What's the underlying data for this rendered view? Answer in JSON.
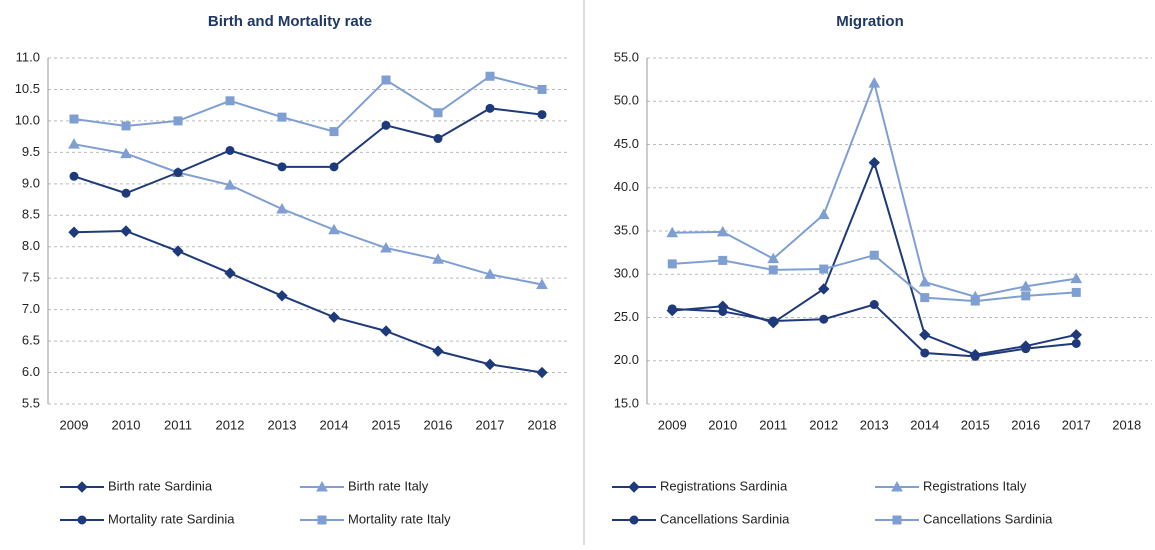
{
  "chart_data": [
    {
      "type": "line",
      "title": "Birth and Mortality rate",
      "categories": [
        "2009",
        "2010",
        "2011",
        "2012",
        "2013",
        "2014",
        "2015",
        "2016",
        "2017",
        "2018"
      ],
      "ylim": [
        5.5,
        11.0
      ],
      "yticks": [
        5.5,
        {
          "value": 6,
          "label": "6.0"
        },
        6.5,
        {
          "value": 7,
          "label": "7.0"
        },
        7.5,
        {
          "value": 8,
          "label": "8.0"
        },
        8.5,
        {
          "value": 9,
          "label": "9.0"
        },
        9.5,
        {
          "value": 10,
          "label": "10.0"
        },
        10.5,
        {
          "value": 11,
          "label": "11.0"
        }
      ],
      "grid": true,
      "series": [
        {
          "name": "Birth rate Sardinia",
          "color": "#1f3a7a",
          "marker": "diamond",
          "values": [
            8.23,
            8.25,
            7.93,
            7.58,
            7.22,
            6.88,
            6.66,
            6.34,
            6.13,
            6.0
          ]
        },
        {
          "name": "Birth rate Italy",
          "color": "#7f9fd3",
          "marker": "triangle",
          "values": [
            9.63,
            9.48,
            9.18,
            8.98,
            8.6,
            8.27,
            7.98,
            7.8,
            7.56,
            7.4
          ]
        },
        {
          "name": "Mortality rate Sardinia",
          "color": "#1f3a7a",
          "marker": "circle",
          "values": [
            9.12,
            8.85,
            9.18,
            9.53,
            9.27,
            9.27,
            9.93,
            9.72,
            10.2,
            10.1
          ]
        },
        {
          "name": "Mortality rate Italy",
          "color": "#7f9fd3",
          "marker": "square",
          "values": [
            10.03,
            9.92,
            10.0,
            10.32,
            10.06,
            9.83,
            10.65,
            10.13,
            10.71,
            10.5
          ]
        }
      ]
    },
    {
      "type": "line",
      "title": "Migration",
      "categories": [
        "2009",
        "2010",
        "2011",
        "2012",
        "2013",
        "2014",
        "2015",
        "2016",
        "2017",
        "2018"
      ],
      "ylim": [
        15,
        55
      ],
      "yticks": [
        {
          "value": 15,
          "label": "15.0"
        },
        {
          "value": 20,
          "label": "20.0"
        },
        {
          "value": 25,
          "label": "25.0"
        },
        {
          "value": 30,
          "label": "30.0"
        },
        {
          "value": 35,
          "label": "35.0"
        },
        {
          "value": 40,
          "label": "40.0"
        },
        {
          "value": 45,
          "label": "45.0"
        },
        {
          "value": 50,
          "label": "50.0"
        },
        {
          "value": 55,
          "label": "55.0"
        }
      ],
      "grid": true,
      "series": [
        {
          "name": "Registrations Sardinia",
          "color": "#1f3a7a",
          "marker": "diamond",
          "values": [
            25.8,
            26.3,
            24.4,
            28.3,
            42.9,
            23.0,
            20.7,
            21.7,
            23.0,
            null
          ]
        },
        {
          "name": "Registrations Italy",
          "color": "#7f9fd3",
          "marker": "triangle",
          "values": [
            34.8,
            34.9,
            31.8,
            36.9,
            52.1,
            29.1,
            27.4,
            28.6,
            29.5,
            null
          ]
        },
        {
          "name": "Cancellations Sardinia",
          "color": "#1f3a7a",
          "marker": "circle",
          "values": [
            26.0,
            25.7,
            24.6,
            24.8,
            26.5,
            20.9,
            20.5,
            21.4,
            22.0,
            null
          ]
        },
        {
          "name": "Cancellations Sardinia",
          "color": "#7f9fd3",
          "marker": "square",
          "values": [
            31.2,
            31.6,
            30.5,
            30.6,
            32.2,
            27.3,
            26.9,
            27.5,
            27.9,
            null
          ]
        }
      ]
    }
  ]
}
